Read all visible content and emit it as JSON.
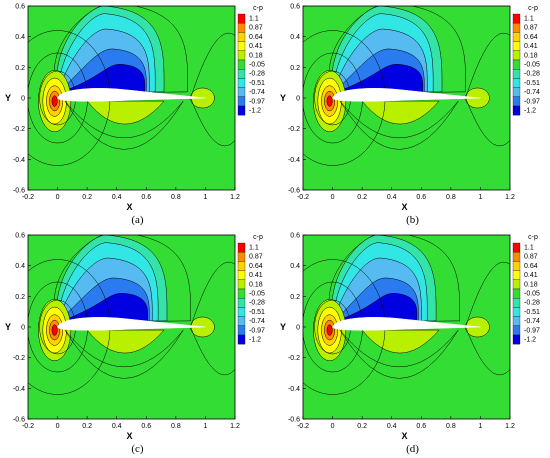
{
  "colormap": {
    "title": "c-p",
    "levels": [
      "1.1",
      "0.87",
      "0.64",
      "0.41",
      "0.18",
      "-0.05",
      "-0.28",
      "-0.51",
      "-0.74",
      "-0.97",
      "-1.2"
    ],
    "colors": [
      "#ff0000",
      "#ff8c00",
      "#ffd200",
      "#ffff00",
      "#b8f000",
      "#33dd33",
      "#33e3a8",
      "#33e6e6",
      "#55bbf0",
      "#2a7bf0",
      "#0000e0"
    ],
    "background": "#33dd33"
  },
  "chart_data": [
    {
      "panel": "(a)",
      "type": "heatmap",
      "quantity": "c-p",
      "xlabel": "X",
      "ylabel": "Y",
      "xlim": [
        -0.2,
        1.2
      ],
      "ylim": [
        -0.6,
        0.6
      ],
      "x_ticks": [
        "-0.2",
        "0",
        "0.2",
        "0.4",
        "0.6",
        "0.8",
        "1",
        "1.2"
      ],
      "y_ticks": [
        "0.6",
        "0.4",
        "0.2",
        "0",
        "-0.2",
        "-0.4",
        "-0.6"
      ],
      "min_cp_location": [
        0.5,
        0.12
      ],
      "suction_shock_x": 0.6
    },
    {
      "panel": "(b)",
      "type": "heatmap",
      "quantity": "c-p",
      "xlabel": "X",
      "ylabel": "Y",
      "xlim": [
        -0.2,
        1.2
      ],
      "ylim": [
        -0.6,
        0.6
      ],
      "x_ticks": [
        "-0.2",
        "0",
        "0.2",
        "0.4",
        "0.6",
        "0.8",
        "1",
        "1.2"
      ],
      "y_ticks": [
        "0.6",
        "0.4",
        "0.2",
        "0",
        "-0.2",
        "-0.4",
        "-0.6"
      ],
      "min_cp_location": [
        0.5,
        0.12
      ],
      "suction_shock_x": 0.62
    },
    {
      "panel": "(c)",
      "type": "heatmap",
      "quantity": "c-p",
      "xlabel": "X",
      "ylabel": "Y",
      "xlim": [
        -0.2,
        1.2
      ],
      "ylim": [
        -0.6,
        0.6
      ],
      "x_ticks": [
        "-0.2",
        "0",
        "0.2",
        "0.4",
        "0.6",
        "0.8",
        "1",
        "1.2"
      ],
      "y_ticks": [
        "0.6",
        "0.4",
        "0.2",
        "0",
        "-0.2",
        "-0.4",
        "-0.6"
      ],
      "min_cp_location": [
        0.55,
        0.12
      ],
      "suction_shock_x": 0.62
    },
    {
      "panel": "(d)",
      "type": "heatmap",
      "quantity": "c-p",
      "xlabel": "X",
      "ylabel": "Y",
      "xlim": [
        -0.2,
        1.2
      ],
      "ylim": [
        -0.6,
        0.6
      ],
      "x_ticks": [
        "-0.2",
        "0",
        "0.2",
        "0.4",
        "0.6",
        "0.8",
        "1",
        "1.2"
      ],
      "y_ticks": [
        "0.6",
        "0.4",
        "0.2",
        "0",
        "-0.2",
        "-0.4",
        "-0.6"
      ],
      "min_cp_location": [
        0.52,
        0.12
      ],
      "suction_shock_x": 0.58
    }
  ]
}
